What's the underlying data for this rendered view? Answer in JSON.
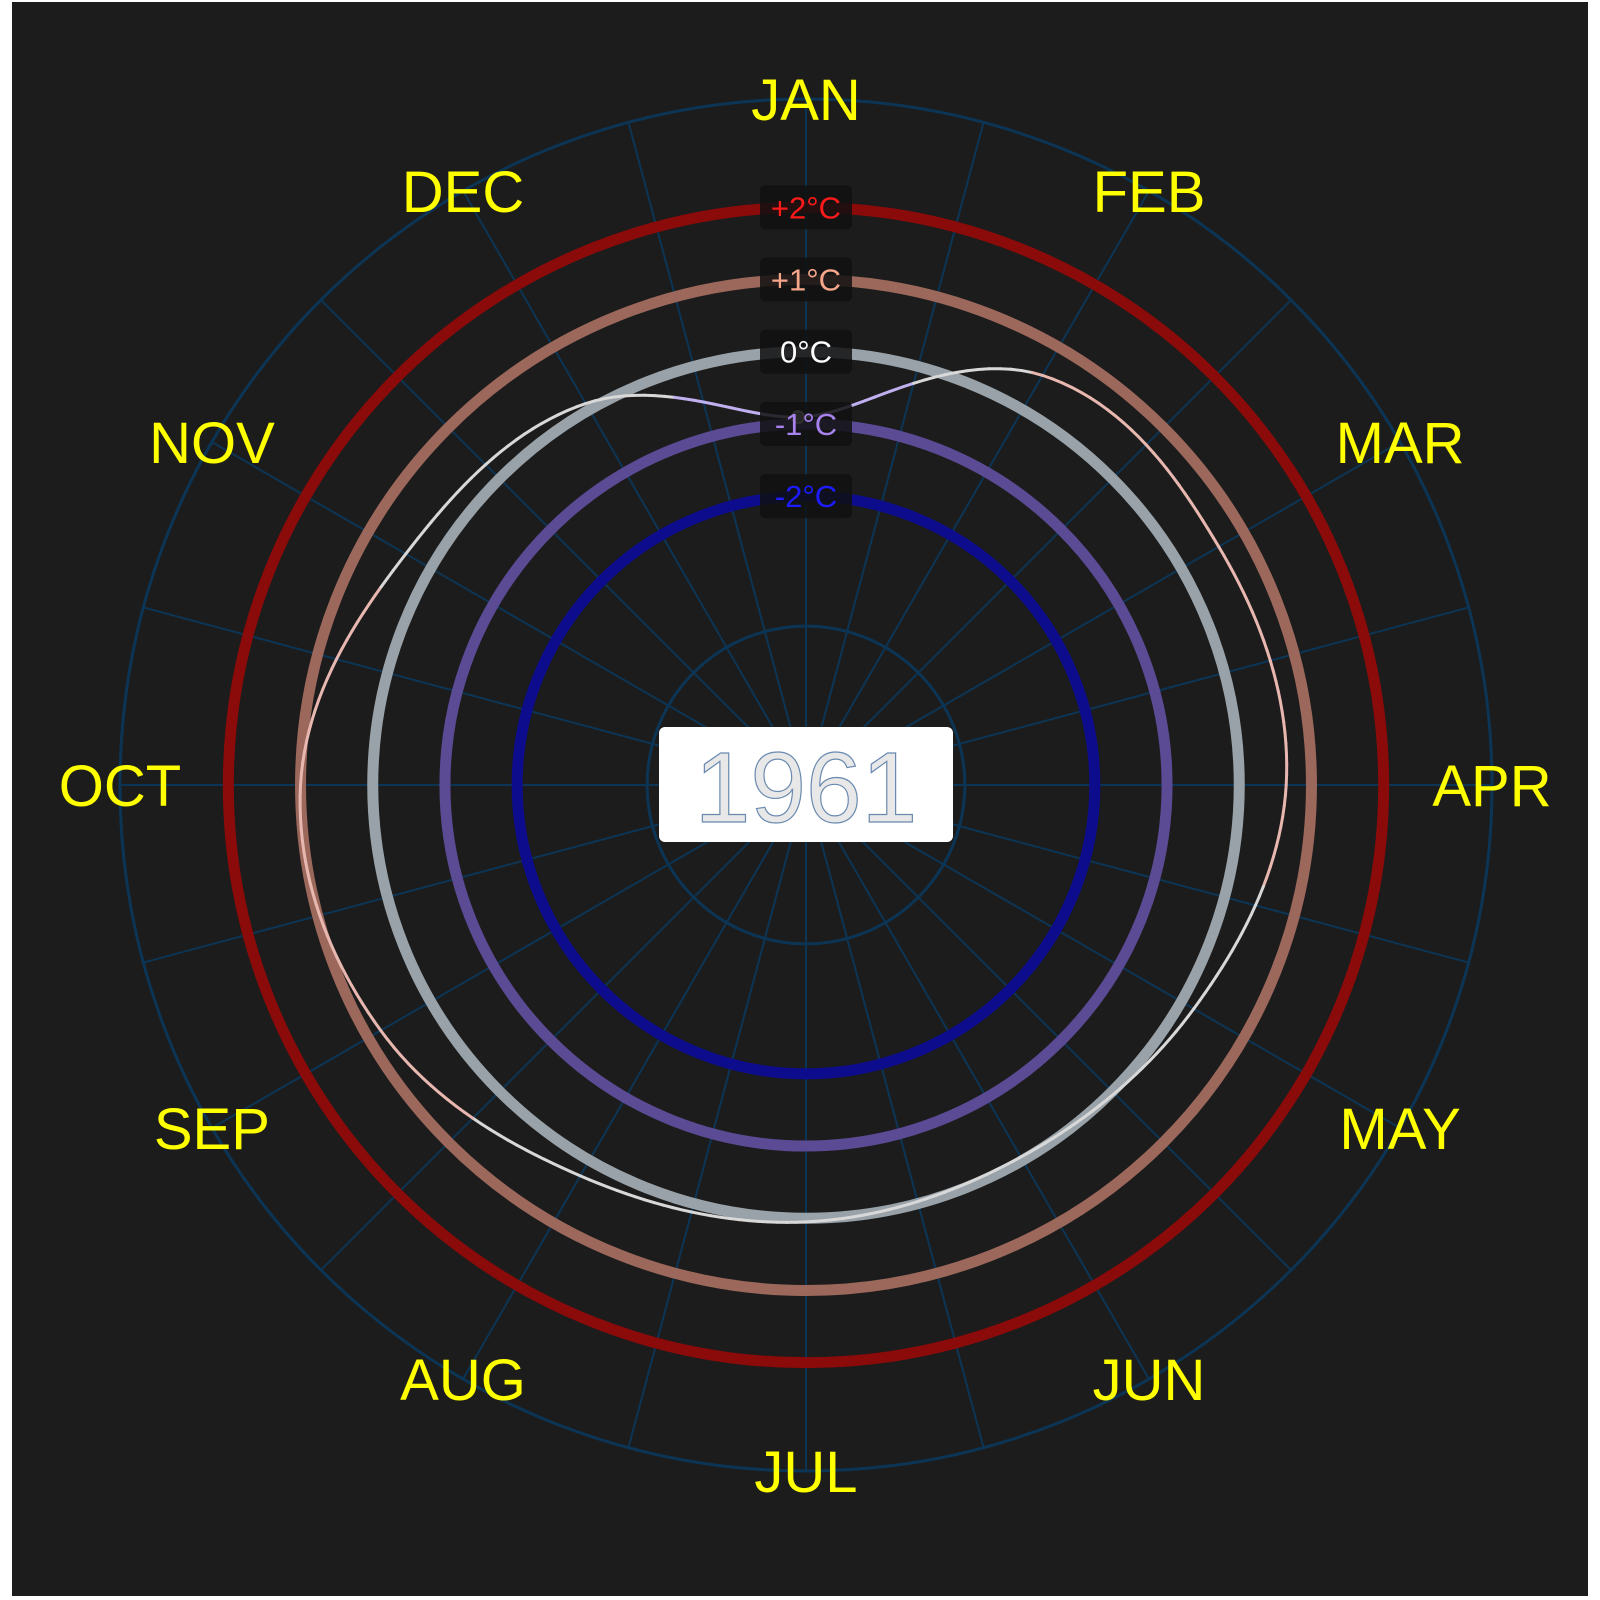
{
  "colors": {
    "background": "#1c1c1c",
    "grid": "#0c3555",
    "month_text": "#ffff00",
    "year_box": "#ffffff",
    "year_text_fill": "#e8e8e8"
  },
  "chart_data": {
    "type": "line",
    "projection": "polar",
    "title": "1961",
    "theta_labels": [
      "JAN",
      "FEB",
      "MAR",
      "APR",
      "MAY",
      "JUN",
      "JUL",
      "AUG",
      "SEP",
      "OCT",
      "NOV",
      "DEC"
    ],
    "radial_range_c": [
      -6,
      3.5
    ],
    "reference_rings": [
      {
        "label": "+2°C",
        "value": 2,
        "color": "#8b0a0a",
        "label_color": "#ff1a1a"
      },
      {
        "label": "+1°C",
        "value": 1,
        "color": "#9c685c",
        "label_color": "#f4a58a"
      },
      {
        "label": "0°C",
        "value": 0,
        "color": "#98a2a8",
        "label_color": "#ffffff"
      },
      {
        "label": "-1°C",
        "value": -1,
        "color": "#5b4a94",
        "label_color": "#a882ee"
      },
      {
        "label": "-2°C",
        "value": -2,
        "color": "#0c0c8c",
        "label_color": "#1c1cff"
      }
    ],
    "series": [
      {
        "year": "1961",
        "anomaly_c": [
          -0.9,
          0.55,
          0.6,
          0.65,
          0.2,
          -0.05,
          0.05,
          0.25,
          0.8,
          1.0,
          0.4,
          0.1
        ]
      }
    ]
  }
}
